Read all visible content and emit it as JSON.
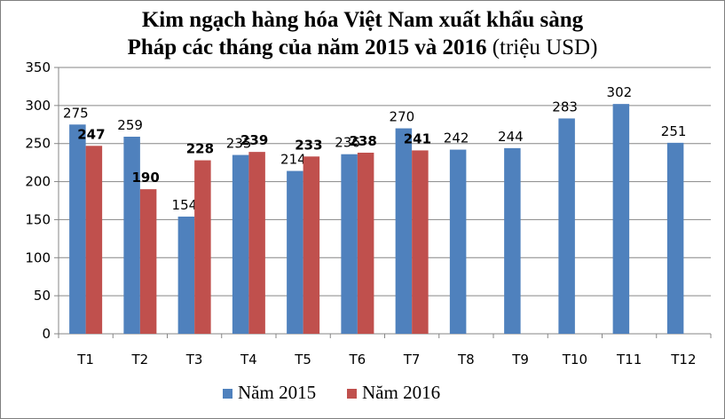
{
  "chart_data": {
    "type": "bar",
    "title_line1": "Kim ngạch hàng hóa Việt Nam xuất khẩu sàng",
    "title_line2": "Pháp các tháng của năm 2015 và 2016",
    "title_unit": "(triệu USD)",
    "categories": [
      "T1",
      "T2",
      "T3",
      "T4",
      "T5",
      "T6",
      "T7",
      "T8",
      "T9",
      "T10",
      "T11",
      "T12"
    ],
    "series": [
      {
        "name": "Năm 2015",
        "color": "#4f81bd",
        "values": [
          275,
          259,
          154,
          235,
          214,
          236,
          270,
          242,
          244,
          283,
          302,
          251
        ],
        "labels": [
          "275",
          "259",
          "154",
          "235",
          "214",
          "236",
          "270",
          "242",
          "244",
          "283",
          "302",
          "251"
        ]
      },
      {
        "name": "Năm 2016",
        "color": "#c0504d",
        "values": [
          247,
          190,
          228,
          239,
          233,
          238,
          241,
          null,
          null,
          null,
          null,
          null
        ],
        "labels": [
          "247",
          "190",
          "228",
          "239",
          "233",
          "238",
          "241",
          "",
          "",
          "",
          "",
          ""
        ]
      }
    ],
    "ylim": [
      0,
      350
    ],
    "yticks": [
      "0",
      "50",
      "100",
      "150",
      "200",
      "250",
      "300",
      "350"
    ],
    "grid": true,
    "legend_position": "bottom"
  }
}
